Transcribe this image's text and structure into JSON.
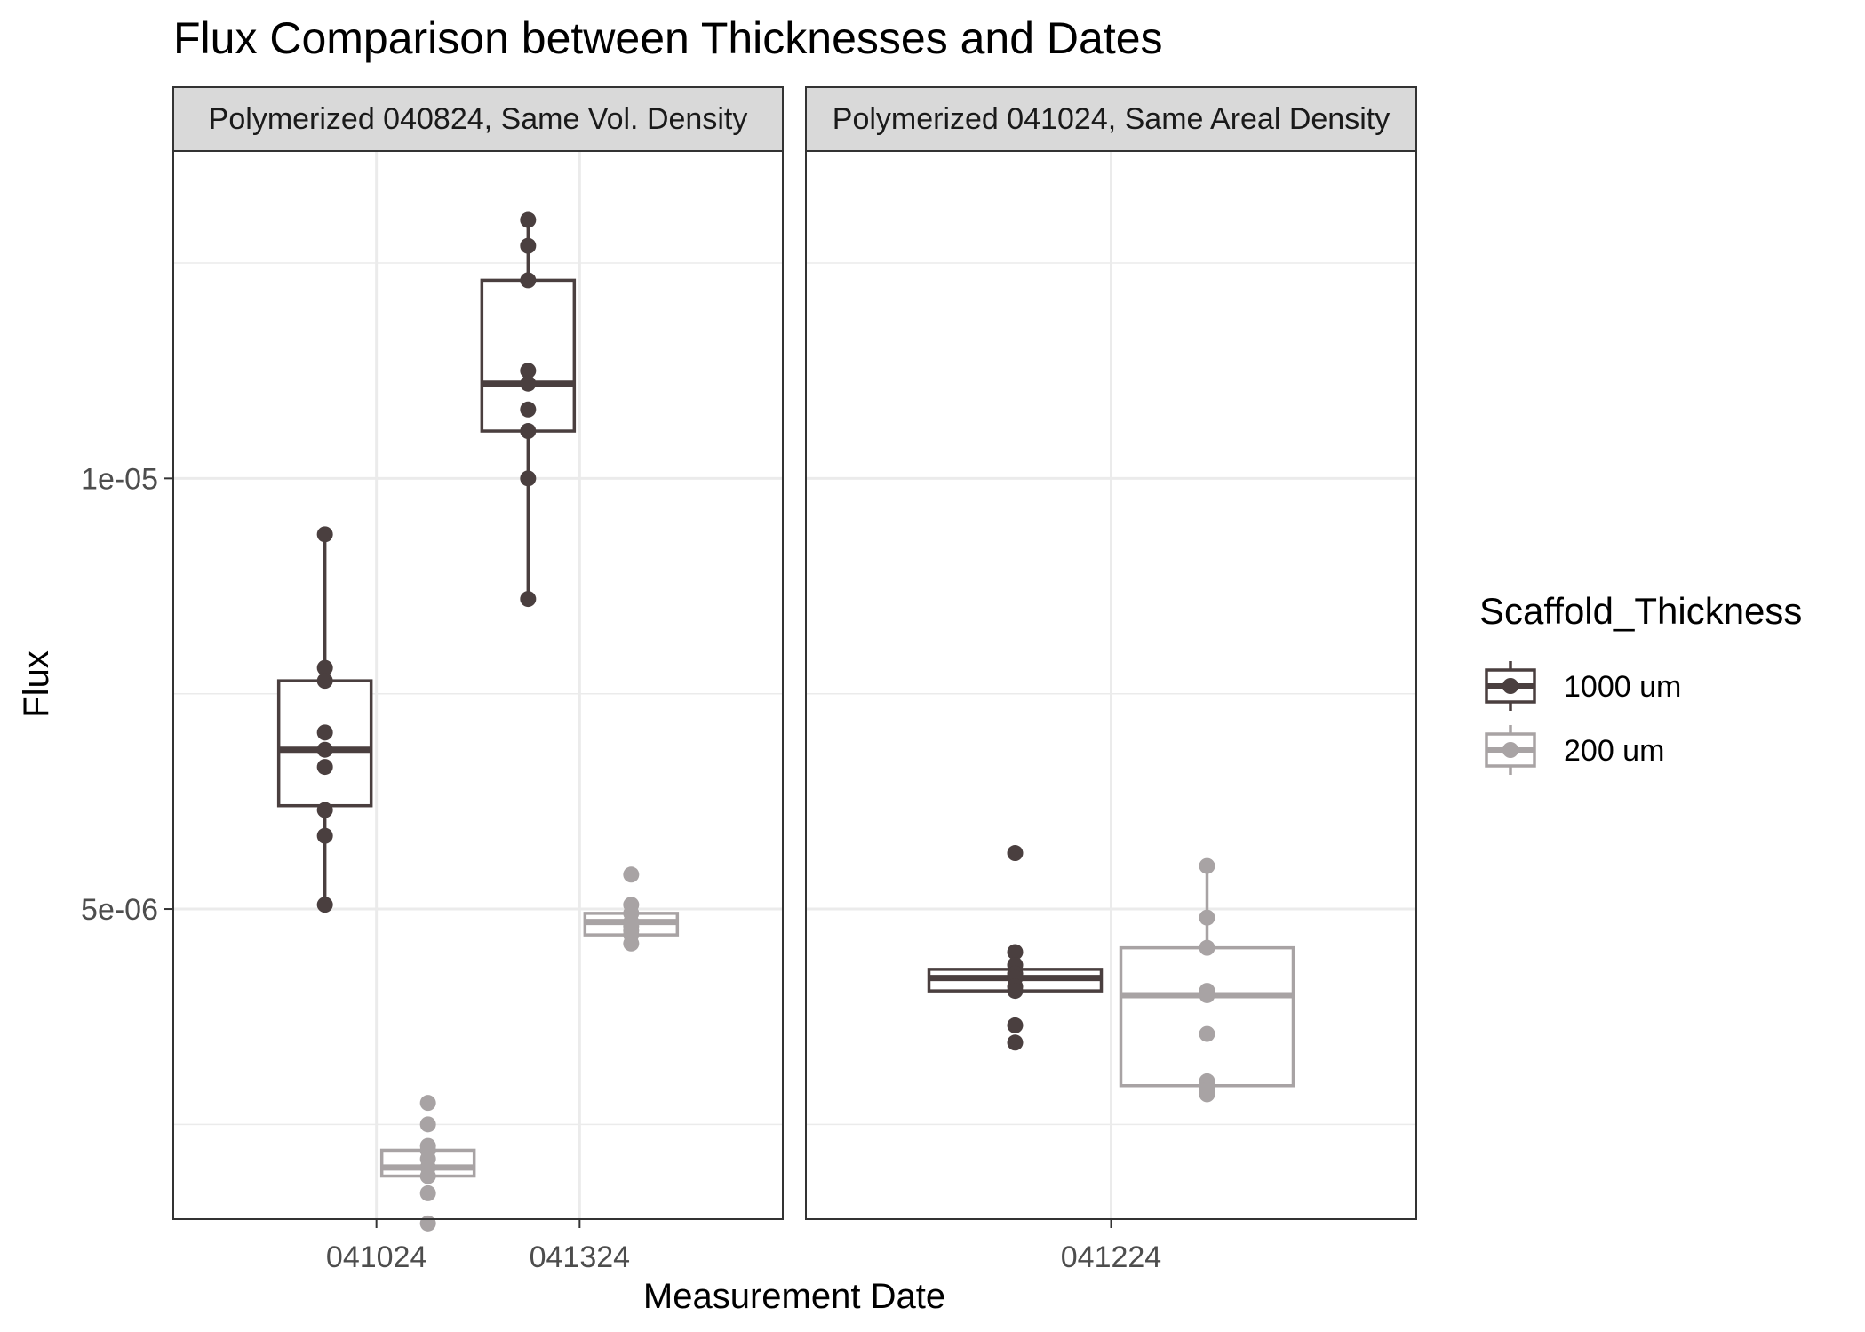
{
  "chart_data": {
    "type": "boxplot",
    "title": "Flux Comparison between Thicknesses and Dates",
    "xlabel": "Measurement Date",
    "ylabel": "Flux",
    "y_range": [
      1.4e-06,
      1.38e-05
    ],
    "y_ticks": [
      {
        "value": 5e-06,
        "label": "5e-06"
      },
      {
        "value": 1e-05,
        "label": "1e-05"
      }
    ],
    "y_minor_gridlines": [
      2.5e-06,
      7.5e-06,
      1.25e-05
    ],
    "grid": true,
    "legend": {
      "title": "Scaffold_Thickness",
      "position": "right",
      "entries": [
        {
          "label": "1000 um",
          "color": "#4a3f3f"
        },
        {
          "label": "200 um",
          "color": "#a8a3a4"
        }
      ]
    },
    "panels": [
      {
        "strip": "Polymerized 040824, Same Vol. Density",
        "categories": [
          "041024",
          "041324"
        ],
        "groups": [
          {
            "category": "041024",
            "series": "1000 um",
            "box": {
              "min": 5.05e-06,
              "q1": 6.2e-06,
              "median": 6.85e-06,
              "q3": 7.65e-06,
              "max": 9.35e-06
            },
            "points": [
              9.35e-06,
              7.8e-06,
              7.65e-06,
              7.05e-06,
              6.85e-06,
              6.65e-06,
              6.15e-06,
              5.85e-06,
              5.05e-06
            ]
          },
          {
            "category": "041024",
            "series": "200 um",
            "box": {
              "min": 1.85e-06,
              "q1": 1.9e-06,
              "median": 2e-06,
              "q3": 2.2e-06,
              "max": 2.3e-06
            },
            "points": [
              2.75e-06,
              2.5e-06,
              2.25e-06,
              2.2e-06,
              2.1e-06,
              2e-06,
              1.9e-06,
              1.7e-06,
              1.35e-06
            ]
          },
          {
            "category": "041324",
            "series": "1000 um",
            "box": {
              "min": 8.6e-06,
              "q1": 1.055e-05,
              "median": 1.11e-05,
              "q3": 1.23e-05,
              "max": 1.3e-05
            },
            "points": [
              1.3e-05,
              1.27e-05,
              1.23e-05,
              1.125e-05,
              1.11e-05,
              1.08e-05,
              1.055e-05,
              1e-05,
              8.6e-06
            ]
          },
          {
            "category": "041324",
            "series": "200 um",
            "box": {
              "min": 4.65e-06,
              "q1": 4.7e-06,
              "median": 4.85e-06,
              "q3": 4.95e-06,
              "max": 5.05e-06
            },
            "points": [
              5.4e-06,
              5.05e-06,
              4.95e-06,
              4.85e-06,
              4.8e-06,
              4.75e-06,
              4.7e-06,
              4.6e-06
            ]
          }
        ]
      },
      {
        "strip": "Polymerized 041024, Same Areal Density",
        "categories": [
          "041224"
        ],
        "groups": [
          {
            "category": "041224",
            "series": "1000 um",
            "box": {
              "min": 4.05e-06,
              "q1": 4.05e-06,
              "median": 4.2e-06,
              "q3": 4.3e-06,
              "max": 4.3e-06
            },
            "points": [
              5.65e-06,
              4.5e-06,
              4.35e-06,
              4.25e-06,
              4.2e-06,
              4.1e-06,
              4.05e-06,
              3.65e-06,
              3.45e-06
            ]
          },
          {
            "category": "041224",
            "series": "200 um",
            "box": {
              "min": 2.85e-06,
              "q1": 2.95e-06,
              "median": 4e-06,
              "q3": 4.55e-06,
              "max": 5.5e-06
            },
            "points": [
              5.5e-06,
              4.9e-06,
              4.55e-06,
              4.05e-06,
              4e-06,
              3.55e-06,
              3e-06,
              2.9e-06,
              2.85e-06
            ]
          }
        ]
      }
    ]
  }
}
